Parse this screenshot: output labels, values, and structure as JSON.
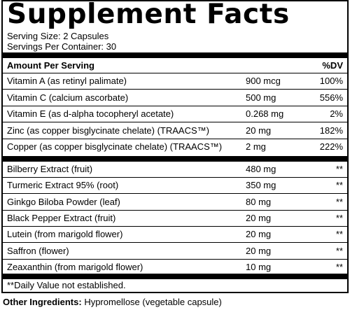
{
  "panel": {
    "title": "Supplement Facts",
    "serving_size": "Serving Size: 2 Capsules",
    "servings_per_container": "Servings Per Container: 30",
    "header_amount": "Amount Per Serving",
    "header_dv": "%DV"
  },
  "group1": [
    {
      "name": "Vitamin A (as retinyl palimate)",
      "amount": "900 mcg",
      "dv": "100%"
    },
    {
      "name": "Vitamin C (calcium ascorbate)",
      "amount": "500 mg",
      "dv": "556%"
    },
    {
      "name": "Vitamin E (as d-alpha tocopheryl acetate)",
      "amount": "0.268 mg",
      "dv": "2%"
    },
    {
      "name": "Zinc (as copper bisglycinate chelate) (TRAACS™)",
      "amount": "20 mg",
      "dv": "182%"
    },
    {
      "name": "Copper (as copper bisglycinate chelate) (TRAACS™)",
      "amount": "2 mg",
      "dv": "222%"
    }
  ],
  "group2": [
    {
      "name": "Bilberry Extract (fruit)",
      "amount": "480 mg",
      "dv": "**"
    },
    {
      "name": "Turmeric Extract 95% (root)",
      "amount": "350 mg",
      "dv": "**"
    },
    {
      "name": "Ginkgo Biloba Powder (leaf)",
      "amount": "80 mg",
      "dv": "**"
    },
    {
      "name": "Black Pepper Extract (fruit)",
      "amount": "20 mg",
      "dv": "**"
    },
    {
      "name": "Lutein (from marigold flower)",
      "amount": "20 mg",
      "dv": "**"
    },
    {
      "name": "Saffron (flower)",
      "amount": "20 mg",
      "dv": "**"
    },
    {
      "name": "Zeaxanthin (from marigold flower)",
      "amount": "10 mg",
      "dv": "**"
    }
  ],
  "footnote": "**Daily Value not established.",
  "other_ingredients": {
    "label": "Other Ingredients:",
    "value": "Hypromellose (vegetable capsule)"
  }
}
